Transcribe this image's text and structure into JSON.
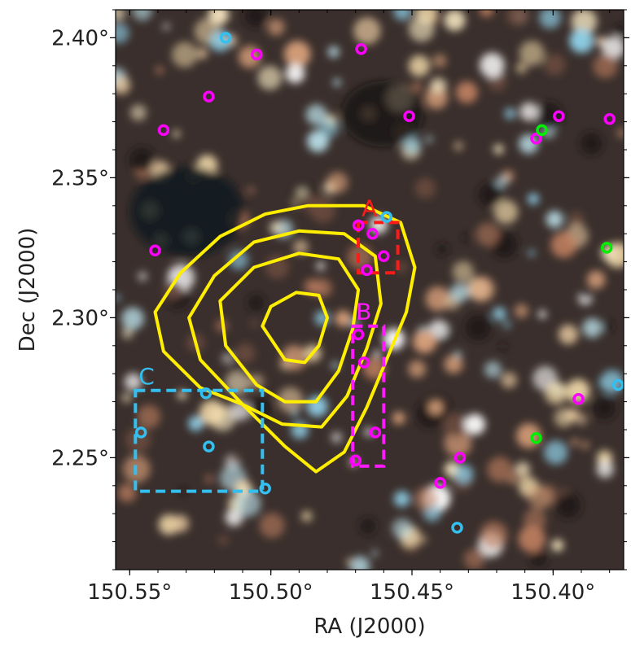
{
  "chart_data": {
    "type": "scatter",
    "xlabel": "RA (J2000)",
    "ylabel": "Dec (J2000)",
    "xlim": [
      150.555,
      150.375
    ],
    "ylim": [
      2.21,
      2.41
    ],
    "x_inverted": true,
    "x_ticks": [
      {
        "value": 150.55,
        "label": "150.55°"
      },
      {
        "value": 150.5,
        "label": "150.50°"
      },
      {
        "value": 150.45,
        "label": "150.45°"
      },
      {
        "value": 150.4,
        "label": "150.40°"
      }
    ],
    "y_ticks": [
      {
        "value": 2.25,
        "label": "2.25°"
      },
      {
        "value": 2.3,
        "label": "2.30°"
      },
      {
        "value": 2.35,
        "label": "2.35°"
      },
      {
        "value": 2.4,
        "label": "2.40°"
      }
    ],
    "background": "RGB composite sky image",
    "series": [
      {
        "marker": "open-circle",
        "color": "#ff00ff",
        "points": [
          [
            150.468,
            2.396
          ],
          [
            150.505,
            2.394
          ],
          [
            150.522,
            2.379
          ],
          [
            150.538,
            2.367
          ],
          [
            150.451,
            2.372
          ],
          [
            150.398,
            2.372
          ],
          [
            150.406,
            2.364
          ],
          [
            150.38,
            2.371
          ],
          [
            150.541,
            2.324
          ],
          [
            150.469,
            2.333
          ],
          [
            150.464,
            2.33
          ],
          [
            150.46,
            2.322
          ],
          [
            150.466,
            2.317
          ],
          [
            150.469,
            2.294
          ],
          [
            150.467,
            2.284
          ],
          [
            150.463,
            2.259
          ],
          [
            150.47,
            2.249
          ],
          [
            150.44,
            2.241
          ],
          [
            150.433,
            2.25
          ],
          [
            150.391,
            2.271
          ]
        ]
      },
      {
        "marker": "open-circle",
        "color": "#33c0f0",
        "points": [
          [
            150.516,
            2.4
          ],
          [
            150.459,
            2.336
          ],
          [
            150.523,
            2.273
          ],
          [
            150.546,
            2.259
          ],
          [
            150.522,
            2.254
          ],
          [
            150.502,
            2.239
          ],
          [
            150.434,
            2.225
          ],
          [
            150.377,
            2.276
          ]
        ]
      },
      {
        "marker": "open-circle",
        "color": "#00ee00",
        "points": [
          [
            150.404,
            2.367
          ],
          [
            150.381,
            2.325
          ],
          [
            150.406,
            2.257
          ]
        ]
      }
    ],
    "contours": {
      "color": "#ffee00",
      "levels": [
        [
          [
            150.51,
            2.269
          ],
          [
            150.525,
            2.275
          ],
          [
            150.538,
            2.288
          ],
          [
            150.541,
            2.302
          ],
          [
            150.532,
            2.316
          ],
          [
            150.518,
            2.329
          ],
          [
            150.502,
            2.337
          ],
          [
            150.487,
            2.34
          ],
          [
            150.467,
            2.34
          ],
          [
            150.454,
            2.334
          ],
          [
            150.449,
            2.318
          ],
          [
            150.452,
            2.302
          ],
          [
            150.459,
            2.285
          ],
          [
            150.466,
            2.268
          ],
          [
            150.474,
            2.252
          ],
          [
            150.484,
            2.245
          ],
          [
            150.495,
            2.254
          ],
          [
            150.51,
            2.269
          ]
        ],
        [
          [
            150.51,
            2.269
          ],
          [
            150.525,
            2.285
          ],
          [
            150.529,
            2.3
          ],
          [
            150.52,
            2.315
          ],
          [
            150.506,
            2.327
          ],
          [
            150.49,
            2.331
          ],
          [
            150.474,
            2.33
          ],
          [
            150.463,
            2.322
          ],
          [
            150.461,
            2.305
          ],
          [
            150.466,
            2.289
          ],
          [
            150.473,
            2.272
          ],
          [
            150.482,
            2.261
          ],
          [
            150.496,
            2.262
          ],
          [
            150.51,
            2.269
          ]
        ],
        [
          [
            150.505,
            2.276
          ],
          [
            150.516,
            2.29
          ],
          [
            150.518,
            2.306
          ],
          [
            150.506,
            2.318
          ],
          [
            150.49,
            2.323
          ],
          [
            150.476,
            2.321
          ],
          [
            150.469,
            2.31
          ],
          [
            150.471,
            2.296
          ],
          [
            150.476,
            2.281
          ],
          [
            150.484,
            2.27
          ],
          [
            150.495,
            2.27
          ],
          [
            150.505,
            2.276
          ]
        ],
        [
          [
            150.495,
            2.285
          ],
          [
            150.503,
            2.297
          ],
          [
            150.5,
            2.304
          ],
          [
            150.491,
            2.309
          ],
          [
            150.483,
            2.308
          ],
          [
            150.48,
            2.3
          ],
          [
            150.483,
            2.29
          ],
          [
            150.488,
            2.284
          ],
          [
            150.495,
            2.285
          ]
        ]
      ]
    },
    "regions": [
      {
        "label": "A",
        "color": "#ff1a1a",
        "ra": [
          150.455,
          150.469
        ],
        "dec": [
          2.316,
          2.334
        ]
      },
      {
        "label": "B",
        "color": "#ff1aff",
        "ra": [
          150.46,
          150.471
        ],
        "dec": [
          2.247,
          2.297
        ]
      },
      {
        "label": "C",
        "color": "#33c0f0",
        "ra": [
          150.503,
          150.548
        ],
        "dec": [
          2.238,
          2.274
        ]
      }
    ]
  }
}
